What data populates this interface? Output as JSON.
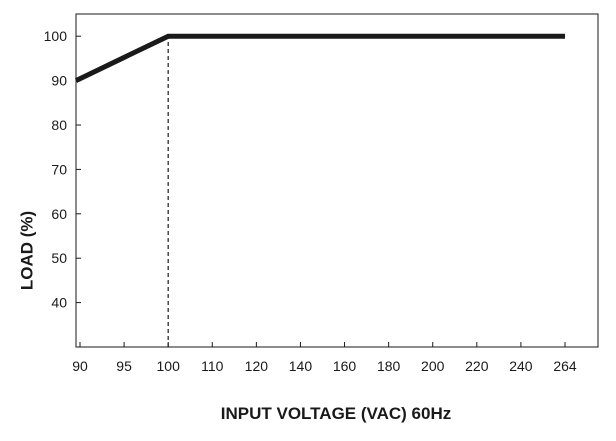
{
  "chart_data": {
    "type": "line",
    "title": "",
    "xlabel": "INPUT VOLTAGE (VAC) 60Hz",
    "ylabel": "LOAD (%)",
    "x_ticks": [
      "90",
      "95",
      "100",
      "110",
      "120",
      "140",
      "160",
      "180",
      "200",
      "220",
      "240",
      "264"
    ],
    "y_ticks": [
      40,
      50,
      60,
      70,
      80,
      90,
      100
    ],
    "ylim": [
      30,
      105
    ],
    "grid": false,
    "legend": "none",
    "series": [
      {
        "x": [
          "90",
          "100",
          "264"
        ],
        "values": [
          90,
          100,
          100
        ],
        "color": "#1a1a1a"
      }
    ],
    "reference_lines": [
      {
        "x": "100",
        "y_from": 30,
        "y_to": 100,
        "style": "dashed"
      }
    ]
  }
}
